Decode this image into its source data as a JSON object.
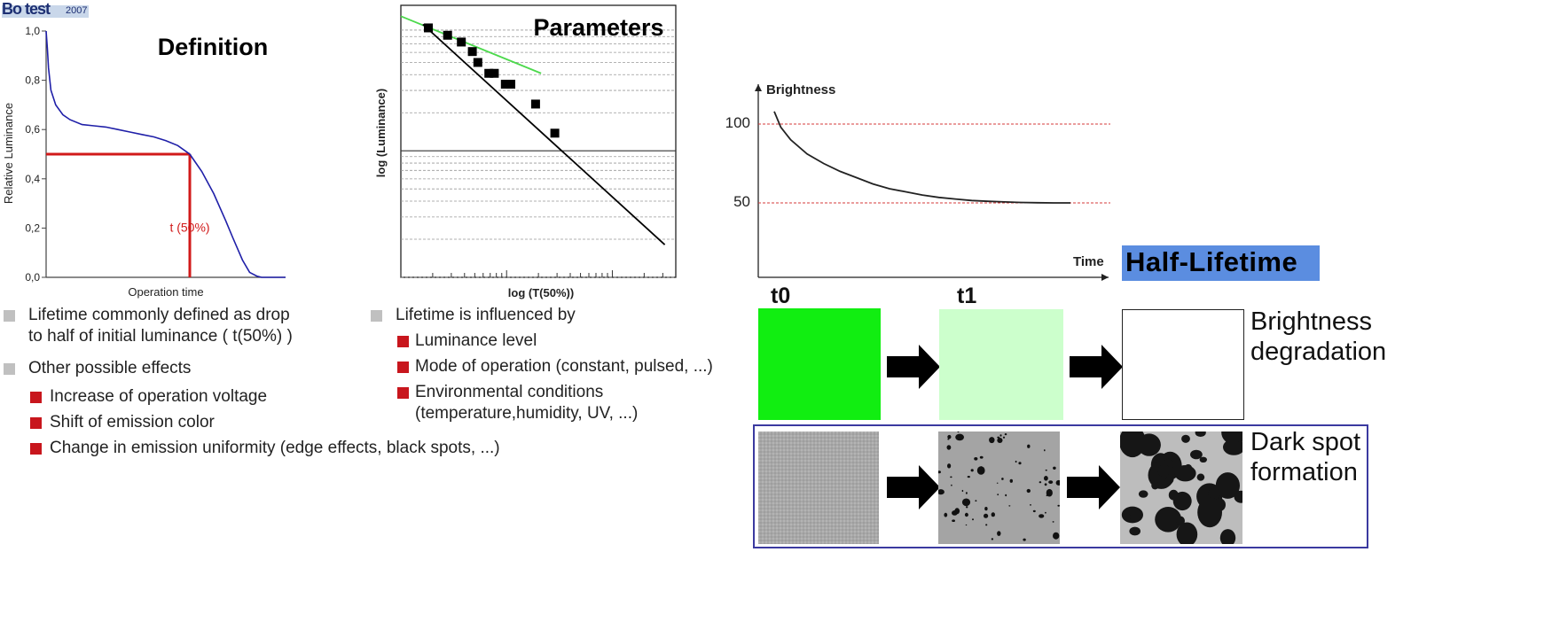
{
  "logo": {
    "text": "Bo test",
    "year": "2007"
  },
  "chart_data": [
    {
      "type": "line",
      "title": "Definition",
      "xlabel": "Operation time",
      "ylabel": "Relative Luminance",
      "yticks": [
        "1,0",
        "0,8",
        "0,6",
        "0,4",
        "0,2",
        "0,0"
      ],
      "ylim": [
        0,
        1
      ],
      "xlim": [
        0,
        1
      ],
      "series": [
        {
          "x": [
            0.0,
            0.005,
            0.01,
            0.02,
            0.04,
            0.07,
            0.1,
            0.15,
            0.2,
            0.25,
            0.3,
            0.35,
            0.4,
            0.45,
            0.5,
            0.55,
            0.6,
            0.65,
            0.7,
            0.75,
            0.78,
            0.82,
            0.85,
            0.88,
            0.9,
            0.93,
            1.0
          ],
          "y": [
            1.0,
            0.93,
            0.85,
            0.76,
            0.7,
            0.66,
            0.64,
            0.62,
            0.615,
            0.61,
            0.6,
            0.59,
            0.58,
            0.57,
            0.555,
            0.535,
            0.5,
            0.43,
            0.34,
            0.23,
            0.16,
            0.07,
            0.02,
            0.005,
            0.0,
            0.0,
            0.0
          ]
        }
      ],
      "annotation": {
        "label": "t (50%)",
        "x": 0.6,
        "y": 0.5
      },
      "grid": false
    },
    {
      "type": "scatter",
      "title": "Parameters",
      "xlabel": "log (T(50%))",
      "ylabel": "log (Luminance)",
      "grid": true,
      "xlim": [
        0,
        1
      ],
      "ylim": [
        0,
        1
      ],
      "points": [
        {
          "x": 0.1,
          "y": 0.917
        },
        {
          "x": 0.17,
          "y": 0.89
        },
        {
          "x": 0.22,
          "y": 0.865
        },
        {
          "x": 0.26,
          "y": 0.83
        },
        {
          "x": 0.28,
          "y": 0.79
        },
        {
          "x": 0.32,
          "y": 0.75
        },
        {
          "x": 0.34,
          "y": 0.75
        },
        {
          "x": 0.38,
          "y": 0.71
        },
        {
          "x": 0.4,
          "y": 0.71
        },
        {
          "x": 0.49,
          "y": 0.637
        },
        {
          "x": 0.56,
          "y": 0.53
        }
      ],
      "fit_lines": [
        {
          "name": "green",
          "color": "#4cd94c",
          "x": [
            0.0,
            0.51
          ],
          "y": [
            0.96,
            0.75
          ]
        },
        {
          "name": "black",
          "color": "#000000",
          "x": [
            0.08,
            0.96
          ],
          "y": [
            0.93,
            0.12
          ]
        }
      ]
    },
    {
      "type": "line",
      "xlabel": "Time",
      "ylabel": "Brightness",
      "yticks": [
        "100",
        "50"
      ],
      "ylim": [
        0,
        120
      ],
      "xlim": [
        0,
        1
      ],
      "reference_lines": [
        100,
        50
      ],
      "series": [
        {
          "x": [
            0.0,
            0.02,
            0.05,
            0.1,
            0.15,
            0.2,
            0.25,
            0.3,
            0.35,
            0.4,
            0.45,
            0.5,
            0.55,
            0.6,
            0.65,
            0.7,
            0.75,
            0.8,
            0.85,
            0.9
          ],
          "y": [
            108,
            98,
            90,
            81,
            75,
            70,
            66,
            62,
            59,
            57,
            55,
            53.5,
            52.5,
            51.5,
            51,
            50.6,
            50.3,
            50.1,
            50,
            50
          ]
        }
      ]
    }
  ],
  "left_bullets": [
    {
      "text": "Lifetime commonly defined as drop",
      "text2": "to half of initial luminance ( t(50%) )"
    },
    {
      "text": "Other possible effects"
    }
  ],
  "left_sub_bullets": [
    {
      "text": "Increase of operation voltage"
    },
    {
      "text": "Shift of emission color"
    },
    {
      "text": "Change in emission uniformity  (edge effects, black spots, ...)"
    }
  ],
  "mid_bullets": [
    {
      "text": "Lifetime is influenced by"
    }
  ],
  "mid_sub_bullets": [
    {
      "text": "Luminance level"
    },
    {
      "text": "Mode of operation (constant, pulsed, ...)"
    },
    {
      "text": "Environmental conditions",
      "text2": "(temperature,humidity, UV, ...)"
    }
  ],
  "half_lifetime": {
    "label": "Half-Lifetime",
    "bg": "#5b8de0"
  },
  "time_labels": {
    "t0": "t0",
    "t1": "t1"
  },
  "brightness_degradation": {
    "label1": "Brightness",
    "label2": "degradation",
    "colors": [
      "#11ee11",
      "#ccffcc",
      "#ffffff"
    ]
  },
  "dark_spot": {
    "label1": "Dark spot",
    "label2": "formation",
    "frame_color": "#3b3aa0"
  }
}
